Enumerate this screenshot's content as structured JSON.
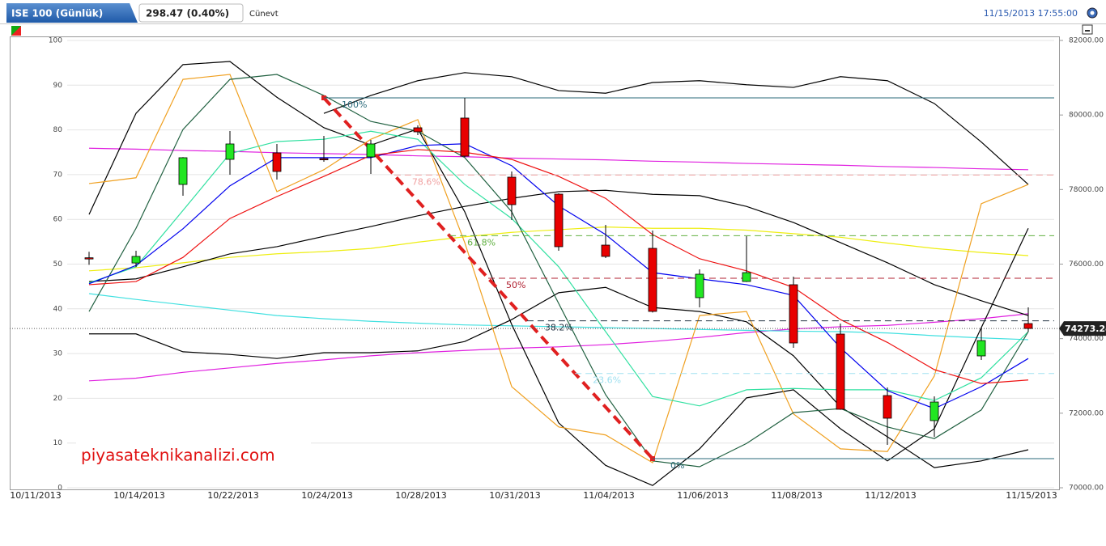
{
  "chart_data": {
    "type": "candlestick",
    "title": "ISE 100 (Günlük)",
    "subtitle": "298.47 (0.40%)",
    "user": "Cünevt",
    "timestamp": "11/15/2013 17:55:00",
    "watermark": "piyasateknikanalizi.com",
    "categories": [
      "10/11/2013",
      null,
      "10/14/2013",
      null,
      "10/22/2013",
      null,
      "10/24/2013",
      null,
      "10/28/2013",
      null,
      "10/31/2013",
      null,
      "11/04/2013",
      null,
      "11/06/2013",
      null,
      "11/08/2013",
      null,
      "11/12/2013",
      null,
      null,
      "11/15/2013"
    ],
    "ylim": [
      0,
      100
    ],
    "yticks": [
      0,
      10,
      20,
      30,
      40,
      50,
      60,
      70,
      80,
      90,
      100
    ],
    "y2lim": [
      70000,
      82000
    ],
    "y2ticks": [
      {
        "value": 70000,
        "label": "70000.00"
      },
      {
        "value": 72000,
        "label": "72000.00"
      },
      {
        "value": 74000,
        "label": "74000.00"
      },
      {
        "value": 76000,
        "label": "76000.00"
      },
      {
        "value": 78000,
        "label": "78000.00"
      },
      {
        "value": 80000,
        "label": "80000.00"
      },
      {
        "value": 82000,
        "label": "82000.00"
      }
    ],
    "grid": true,
    "up_color": "#22e622",
    "down_color": "#e80000",
    "ohlc": {
      "axis": "y2",
      "open": [
        null,
        76170,
        76030,
        78137,
        78810,
        78984,
        78830,
        78875,
        79657,
        79918,
        78333,
        77877,
        76510,
        76423,
        75100,
        75534,
        75447,
        74123,
        72474,
        71801,
        73537,
        74405
      ],
      "high": [
        null,
        76330,
        76358,
        78870,
        79570,
        79223,
        79440,
        79332,
        79722,
        80460,
        78485,
        77900,
        77053,
        76900,
        75859,
        76748,
        75664,
        74405,
        72691,
        72452,
        74297,
        74840
      ],
      "low": [
        null,
        75980,
        75924,
        77834,
        78398,
        78268,
        78745,
        78420,
        79461,
        78875,
        77183,
        76358,
        76163,
        74700,
        74840,
        75520,
        73754,
        72090,
        71150,
        71367,
        73429,
        74188
      ],
      "close": [
        null,
        76140,
        76206,
        78854,
        79223,
        78485,
        78810,
        79223,
        79548,
        78897,
        77595,
        76467,
        76206,
        74731,
        75729,
        75772,
        73884,
        72105,
        71866,
        72300,
        73949,
        74273.24
      ]
    },
    "last_price": 74273.24,
    "series": [
      {
        "color": "#e020e0",
        "values": [
          null,
          75.9,
          75.7,
          75.4,
          75.2,
          74.9,
          74.7,
          74.5,
          74.2,
          74.0,
          73.7,
          73.5,
          73.3,
          73.0,
          72.8,
          72.5,
          72.3,
          72.1,
          71.8,
          71.6,
          71.3,
          71.1
        ]
      },
      {
        "color": "#e020e0",
        "values": [
          null,
          23.9,
          24.5,
          25.8,
          26.8,
          27.8,
          28.6,
          29.5,
          30.2,
          30.7,
          31.2,
          31.5,
          32.0,
          32.7,
          33.6,
          34.7,
          35.5,
          36.0,
          36.3,
          37.0,
          37.8,
          38.9
        ]
      },
      {
        "color": "#eeee10",
        "values": [
          null,
          48.5,
          49.2,
          50.3,
          51.5,
          52.3,
          52.8,
          53.5,
          54.9,
          56.1,
          57.1,
          57.7,
          58.3,
          58.0,
          58.0,
          57.6,
          56.8,
          56.0,
          54.7,
          53.5,
          52.6,
          51.9
        ]
      },
      {
        "color": "#40e0e0",
        "values": [
          null,
          43.4,
          42.1,
          40.9,
          39.7,
          38.5,
          37.8,
          37.2,
          36.8,
          36.4,
          36.2,
          36.0,
          35.8,
          35.6,
          35.4,
          35.2,
          35.0,
          34.9,
          34.6,
          34.0,
          33.5,
          33.1
        ]
      },
      {
        "color": "#000000",
        "values": [
          null,
          46.1,
          46.7,
          49.4,
          52.3,
          53.9,
          56.2,
          58.4,
          60.8,
          62.9,
          64.7,
          66.2,
          66.5,
          65.6,
          65.3,
          62.9,
          59.3,
          54.8,
          50.3,
          45.4,
          41.8,
          38.5
        ]
      },
      {
        "color": "#000000",
        "values": [
          null,
          null,
          null,
          null,
          null,
          null,
          83.7,
          87.7,
          91.0,
          92.8,
          91.9,
          88.8,
          88.2,
          90.6,
          91.0,
          90.1,
          89.5,
          91.9,
          91.0,
          85.9,
          77.3,
          67.8
        ]
      },
      {
        "color": "#000000",
        "values": [
          null,
          34.4,
          34.4,
          30.4,
          29.8,
          28.9,
          30.2,
          30.2,
          30.6,
          32.7,
          37.6,
          43.6,
          44.8,
          40.3,
          39.4,
          37.1,
          29.5,
          18.1,
          11.4,
          4.5,
          6.0,
          8.5
        ]
      },
      {
        "color": "#000000",
        "values": [
          null,
          61.1,
          83.7,
          94.6,
          95.3,
          87.3,
          80.5,
          76.6,
          80.2,
          61.7,
          36.5,
          14.5,
          5.0,
          0.5,
          8.7,
          20.1,
          21.9,
          13.2,
          6.0,
          13.2,
          35.8,
          58.0
        ]
      },
      {
        "color": "#f0a020",
        "values": [
          null,
          68.0,
          69.3,
          91.3,
          92.4,
          66.2,
          71.1,
          77.9,
          82.3,
          54.8,
          22.6,
          13.6,
          11.8,
          5.6,
          38.5,
          39.4,
          16.5,
          8.7,
          8.1,
          25.0,
          63.5,
          67.8
        ]
      },
      {
        "color": "#30e0a0",
        "values": [
          null,
          45.8,
          49.4,
          62.0,
          74.7,
          77.4,
          77.9,
          79.7,
          77.9,
          67.8,
          60.2,
          49.4,
          34.9,
          20.4,
          18.3,
          21.9,
          22.2,
          21.9,
          21.9,
          19.5,
          24.6,
          34.9
        ]
      },
      {
        "color": "#206040",
        "values": [
          null,
          39.4,
          58.0,
          80.1,
          91.3,
          92.4,
          87.7,
          81.9,
          79.7,
          73.8,
          61.7,
          41.2,
          20.8,
          6.0,
          4.7,
          9.9,
          16.8,
          17.7,
          13.6,
          11.0,
          17.4,
          34.9
        ]
      },
      {
        "color": "#0000ee",
        "values": [
          null,
          45.6,
          49.7,
          57.9,
          67.5,
          73.8,
          73.8,
          73.8,
          76.5,
          76.9,
          72.0,
          63.0,
          56.6,
          48.1,
          46.7,
          45.4,
          43.0,
          31.3,
          21.7,
          17.7,
          22.6,
          28.9
        ]
      },
      {
        "color": "#ee1111",
        "values": [
          null,
          45.4,
          46.1,
          51.5,
          60.2,
          65.1,
          69.6,
          74.3,
          75.6,
          75.0,
          73.4,
          69.6,
          64.7,
          56.6,
          51.2,
          48.5,
          44.8,
          37.6,
          32.5,
          26.4,
          23.3,
          24.1
        ]
      }
    ],
    "fib": {
      "axis": "y2",
      "anchor_index": [
        6,
        13
      ],
      "high": 80460,
      "low": 70781,
      "trend_color": "#e02020",
      "levels": [
        100,
        78.6,
        61.8,
        50,
        38.2,
        23.6,
        0
      ],
      "level_labels": [
        "100%",
        "78.6%",
        "61.8%",
        "50%",
        "38.2%",
        "23.6%",
        "0%"
      ],
      "colors": [
        "#2a6a7a",
        "#f0a0a0",
        "#60b040",
        "#b02030",
        "#203040",
        "#a0e0f0",
        "#2a6a7a"
      ],
      "dashed": [
        false,
        true,
        true,
        true,
        true,
        true,
        false
      ]
    }
  }
}
